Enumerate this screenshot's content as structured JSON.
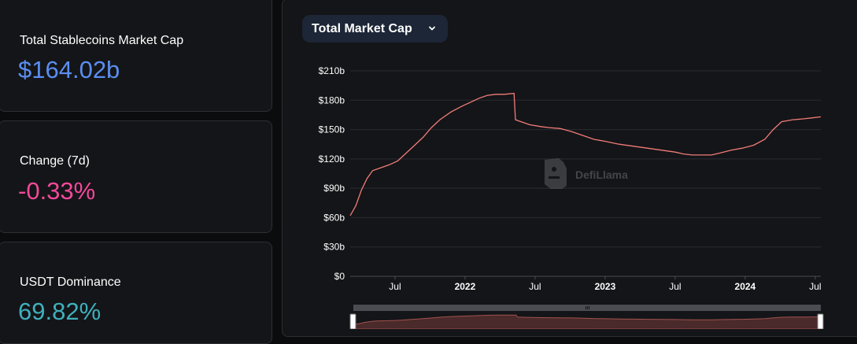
{
  "stats": [
    {
      "label": "Total Stablecoins Market Cap",
      "value": "$164.02b",
      "color": "#5a8ef0"
    },
    {
      "label": "Change (7d)",
      "value": "-0.33%",
      "color": "#f3489a"
    },
    {
      "label": "USDT Dominance",
      "value": "69.82%",
      "color": "#3fb0bd"
    }
  ],
  "chart": {
    "metric_selector": "Total Market Cap",
    "watermark": "DefiLlama",
    "line_color": "#f07c78"
  },
  "chart_data": {
    "type": "line",
    "title": "Total Market Cap",
    "y_tick_labels": [
      "$0",
      "$30b",
      "$60b",
      "$90b",
      "$120b",
      "$150b",
      "$180b",
      "$210b"
    ],
    "y_ticks": [
      0,
      30,
      60,
      90,
      120,
      150,
      180,
      210
    ],
    "ylim": [
      0,
      210
    ],
    "x_ticks": [
      {
        "label": "Jul",
        "t": 2021.5,
        "bold": false
      },
      {
        "label": "2022",
        "t": 2022.0,
        "bold": true
      },
      {
        "label": "Jul",
        "t": 2022.5,
        "bold": false
      },
      {
        "label": "2023",
        "t": 2023.0,
        "bold": true
      },
      {
        "label": "Jul",
        "t": 2023.5,
        "bold": false
      },
      {
        "label": "2024",
        "t": 2024.0,
        "bold": true
      },
      {
        "label": "Jul",
        "t": 2024.5,
        "bold": false
      }
    ],
    "xlim": [
      2021.18,
      2024.54
    ],
    "series": [
      {
        "name": "Total Market Cap ($b)",
        "points": [
          [
            2021.18,
            62
          ],
          [
            2021.22,
            72
          ],
          [
            2021.26,
            88
          ],
          [
            2021.3,
            100
          ],
          [
            2021.34,
            108
          ],
          [
            2021.4,
            111
          ],
          [
            2021.46,
            114
          ],
          [
            2021.52,
            118
          ],
          [
            2021.58,
            126
          ],
          [
            2021.64,
            134
          ],
          [
            2021.7,
            142
          ],
          [
            2021.76,
            152
          ],
          [
            2021.82,
            160
          ],
          [
            2021.9,
            168
          ],
          [
            2021.98,
            174
          ],
          [
            2022.04,
            178
          ],
          [
            2022.1,
            182
          ],
          [
            2022.16,
            185
          ],
          [
            2022.22,
            186
          ],
          [
            2022.28,
            186
          ],
          [
            2022.35,
            187
          ],
          [
            2022.36,
            160
          ],
          [
            2022.4,
            158
          ],
          [
            2022.46,
            155
          ],
          [
            2022.54,
            153
          ],
          [
            2022.6,
            152
          ],
          [
            2022.68,
            151
          ],
          [
            2022.76,
            148
          ],
          [
            2022.84,
            144
          ],
          [
            2022.92,
            140
          ],
          [
            2023.0,
            138
          ],
          [
            2023.1,
            135
          ],
          [
            2023.2,
            133
          ],
          [
            2023.3,
            131
          ],
          [
            2023.4,
            129
          ],
          [
            2023.5,
            127
          ],
          [
            2023.56,
            125
          ],
          [
            2023.62,
            124
          ],
          [
            2023.7,
            124
          ],
          [
            2023.76,
            124
          ],
          [
            2023.82,
            126
          ],
          [
            2023.9,
            129
          ],
          [
            2023.98,
            131
          ],
          [
            2024.06,
            134
          ],
          [
            2024.14,
            140
          ],
          [
            2024.2,
            150
          ],
          [
            2024.26,
            158
          ],
          [
            2024.34,
            160
          ],
          [
            2024.42,
            161
          ],
          [
            2024.48,
            162
          ],
          [
            2024.54,
            163
          ]
        ]
      }
    ]
  }
}
